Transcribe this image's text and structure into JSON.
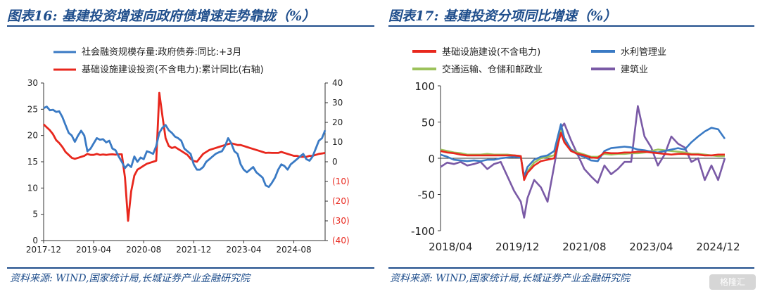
{
  "left": {
    "title": "图表16:  基建投资增速向政府债增速走势靠拢（%）",
    "source": "资料来源:  WIND,国家统计局,长城证券产业金融研究院"
  },
  "right": {
    "title": "图表17:  基建投资分项同比增速（%）",
    "source": "资料来源:  WIND,国家统计局,长城证券产业金融研究院"
  },
  "watermark": "格隆汇",
  "colors": {
    "blue": "#3a7ac4",
    "red": "#e8271d",
    "green": "#9cc25b",
    "purple": "#7a5aa6",
    "brand": "#1f4e8c"
  },
  "chart_data": [
    {
      "type": "line",
      "title": "",
      "xlabel": "",
      "ylabel": "",
      "x_start": "2017-12",
      "x_end": "2025-06",
      "x_ticks": [
        "2017-12",
        "2019-04",
        "2020-08",
        "2021-12",
        "2023-04",
        "2024-08"
      ],
      "ylim": [
        0,
        30
      ],
      "yticks": [
        "0",
        "5",
        "10",
        "15",
        "20",
        "25",
        "30"
      ],
      "y2lim": [
        -40,
        40
      ],
      "y2ticks": [
        "(40)",
        "(30)",
        "(20)",
        "(10)",
        "0",
        "10",
        "20",
        "30",
        "40"
      ],
      "grid": false,
      "legend_position": "top",
      "series": [
        {
          "name": "社会融资规模存量:政府债券:同比:+3月",
          "axis": "left",
          "color": "#3a7ac4",
          "x": [
            "2017-12",
            "2018-01",
            "2018-02",
            "2018-03",
            "2018-04",
            "2018-05",
            "2018-06",
            "2018-07",
            "2018-08",
            "2018-09",
            "2018-10",
            "2018-11",
            "2018-12",
            "2019-01",
            "2019-02",
            "2019-03",
            "2019-04",
            "2019-05",
            "2019-06",
            "2019-07",
            "2019-08",
            "2019-09",
            "2019-10",
            "2019-11",
            "2019-12",
            "2020-01",
            "2020-02",
            "2020-03",
            "2020-04",
            "2020-05",
            "2020-06",
            "2020-07",
            "2020-08",
            "2020-09",
            "2020-10",
            "2020-11",
            "2020-12",
            "2021-01",
            "2021-02",
            "2021-03",
            "2021-04",
            "2021-05",
            "2021-06",
            "2021-07",
            "2021-08",
            "2021-09",
            "2021-10",
            "2021-11",
            "2021-12",
            "2022-01",
            "2022-02",
            "2022-03",
            "2022-04",
            "2022-05",
            "2022-06",
            "2022-07",
            "2022-08",
            "2022-09",
            "2022-10",
            "2022-11",
            "2022-12",
            "2023-01",
            "2023-02",
            "2023-03",
            "2023-04",
            "2023-05",
            "2023-06",
            "2023-07",
            "2023-08",
            "2023-09",
            "2023-10",
            "2023-11",
            "2023-12",
            "2024-01",
            "2024-02",
            "2024-03",
            "2024-04",
            "2024-05",
            "2024-06",
            "2024-07",
            "2024-08",
            "2024-09",
            "2024-10",
            "2024-11",
            "2024-12",
            "2025-01",
            "2025-02",
            "2025-03",
            "2025-04",
            "2025-05",
            "2025-06"
          ],
          "values": [
            25.2,
            25.5,
            24.8,
            24.9,
            24.5,
            24.6,
            23.5,
            22.0,
            20.5,
            20.0,
            18.8,
            20.0,
            20.9,
            20.0,
            17.0,
            17.5,
            18.5,
            19.5,
            19.2,
            19.3,
            18.7,
            19.0,
            17.5,
            17.2,
            16.0,
            15.0,
            13.8,
            14.5,
            14.0,
            16.0,
            15.0,
            15.8,
            15.5,
            17.0,
            16.8,
            16.5,
            18.0,
            20.5,
            21.5,
            22.0,
            21.0,
            20.5,
            19.8,
            19.5,
            19.0,
            17.5,
            17.0,
            16.5,
            14.5,
            13.5,
            13.5,
            14.0,
            15.0,
            15.5,
            16.0,
            16.5,
            16.8,
            17.0,
            18.0,
            19.5,
            18.5,
            17.0,
            16.5,
            14.5,
            13.5,
            13.0,
            13.5,
            14.0,
            13.0,
            12.5,
            12.0,
            10.5,
            10.2,
            11.0,
            12.0,
            13.5,
            14.5,
            14.2,
            13.5,
            14.5,
            15.0,
            15.5,
            16.0,
            16.5,
            15.5,
            15.2,
            16.0,
            17.5,
            19.0,
            19.5,
            21.0
          ]
        },
        {
          "name": "基础设施建设投资(不含电力):累计同比(右轴)",
          "axis": "right",
          "color": "#e8271d",
          "x": [
            "2017-12",
            "2018-01",
            "2018-02",
            "2018-03",
            "2018-04",
            "2018-05",
            "2018-06",
            "2018-07",
            "2018-08",
            "2018-09",
            "2018-10",
            "2018-11",
            "2018-12",
            "2019-01",
            "2019-02",
            "2019-03",
            "2019-04",
            "2019-05",
            "2019-06",
            "2019-07",
            "2019-08",
            "2019-09",
            "2019-10",
            "2019-11",
            "2019-12",
            "2020-01",
            "2020-02",
            "2020-03",
            "2020-04",
            "2020-05",
            "2020-06",
            "2020-07",
            "2020-08",
            "2020-09",
            "2020-10",
            "2020-11",
            "2020-12",
            "2021-01",
            "2021-02",
            "2021-03",
            "2021-04",
            "2021-05",
            "2021-06",
            "2021-07",
            "2021-08",
            "2021-09",
            "2021-10",
            "2021-11",
            "2021-12",
            "2022-01",
            "2022-02",
            "2022-03",
            "2022-04",
            "2022-05",
            "2022-06",
            "2022-07",
            "2022-08",
            "2022-09",
            "2022-10",
            "2022-11",
            "2022-12",
            "2023-01",
            "2023-02",
            "2023-03",
            "2023-04",
            "2023-05",
            "2023-06",
            "2023-07",
            "2023-08",
            "2023-09",
            "2023-10",
            "2023-11",
            "2023-12",
            "2024-01",
            "2024-02",
            "2024-03",
            "2024-04",
            "2024-05",
            "2024-06",
            "2024-07",
            "2024-08",
            "2024-09",
            "2024-10",
            "2024-11",
            "2024-12",
            "2025-01",
            "2025-02",
            "2025-03",
            "2025-04",
            "2025-05",
            "2025-06"
          ],
          "values": [
            19,
            17.5,
            16,
            14,
            11,
            9.5,
            7.5,
            5,
            3.5,
            2,
            1.5,
            2,
            2.5,
            3,
            4,
            3.5,
            3.5,
            4,
            3.5,
            3.7,
            3.5,
            3.7,
            3.8,
            3.6,
            3.8,
            3.8,
            -8,
            -30,
            -15,
            -7,
            -4,
            -3,
            -2,
            -1,
            -0.5,
            0,
            0.5,
            35,
            23,
            12,
            8,
            7,
            7.5,
            6.5,
            5.5,
            4.5,
            3.5,
            1.5,
            0.4,
            0,
            2,
            4,
            5,
            6,
            6.5,
            7,
            7.5,
            8,
            8.5,
            9,
            9.4,
            9,
            8.5,
            8.5,
            8,
            7.5,
            7,
            6.5,
            6,
            5.5,
            5,
            4.5,
            4.6,
            4.5,
            4.5,
            4.5,
            5,
            4.5,
            4,
            3.5,
            3,
            3,
            2.5,
            2.5,
            2.5,
            3,
            3,
            3.5,
            4,
            4.2,
            4.5
          ]
        }
      ]
    },
    {
      "type": "line",
      "title": "",
      "xlabel": "",
      "ylabel": "",
      "x_start": "2018-01",
      "x_end": "2025-02",
      "x_ticks": [
        "2018/04",
        "2019/12",
        "2021/08",
        "2023/04",
        "2024/12"
      ],
      "ylim": [
        -100,
        100
      ],
      "yticks": [
        "-100",
        "-50",
        "0",
        "50",
        "100"
      ],
      "grid": false,
      "legend_position": "top",
      "series": [
        {
          "name": "基础设施建设(不含电力)",
          "color": "#e8271d",
          "x": [
            "2018-01",
            "2018-03",
            "2018-05",
            "2018-07",
            "2018-09",
            "2018-11",
            "2019-01",
            "2019-03",
            "2019-05",
            "2019-07",
            "2019-09",
            "2019-11",
            "2020-01",
            "2020-02",
            "2020-03",
            "2020-05",
            "2020-07",
            "2020-09",
            "2020-11",
            "2021-01",
            "2021-02",
            "2021-04",
            "2021-06",
            "2021-08",
            "2021-10",
            "2021-12",
            "2022-02",
            "2022-04",
            "2022-06",
            "2022-08",
            "2022-10",
            "2022-12",
            "2023-02",
            "2023-04",
            "2023-06",
            "2023-08",
            "2023-10",
            "2023-12",
            "2024-02",
            "2024-04",
            "2024-06",
            "2024-08",
            "2024-10",
            "2024-12",
            "2025-02"
          ],
          "values": [
            10,
            8,
            7,
            5,
            4,
            4,
            4,
            4,
            4,
            4,
            4,
            4,
            3,
            -30,
            -20,
            -10,
            -4,
            -2,
            0,
            35,
            22,
            10,
            6,
            4,
            1,
            0.4,
            8,
            7,
            7,
            8,
            8,
            9,
            9,
            8,
            7,
            6,
            5,
            6,
            6,
            5,
            5,
            4,
            4,
            5,
            5
          ]
        },
        {
          "name": "水利管理业",
          "color": "#3a7ac4",
          "x": [
            "2018-01",
            "2018-03",
            "2018-05",
            "2018-07",
            "2018-09",
            "2018-11",
            "2019-01",
            "2019-03",
            "2019-05",
            "2019-07",
            "2019-09",
            "2019-11",
            "2020-01",
            "2020-02",
            "2020-03",
            "2020-05",
            "2020-07",
            "2020-09",
            "2020-11",
            "2021-01",
            "2021-02",
            "2021-04",
            "2021-06",
            "2021-08",
            "2021-10",
            "2021-12",
            "2022-02",
            "2022-04",
            "2022-06",
            "2022-08",
            "2022-10",
            "2022-12",
            "2023-02",
            "2023-04",
            "2023-06",
            "2023-08",
            "2023-10",
            "2023-12",
            "2024-02",
            "2024-04",
            "2024-06",
            "2024-08",
            "2024-10",
            "2024-12",
            "2025-02"
          ],
          "values": [
            5,
            2,
            -2,
            -3,
            -4,
            -3,
            -4,
            -2,
            -2,
            0,
            1,
            2,
            1,
            -25,
            -12,
            -2,
            2,
            4,
            10,
            47,
            28,
            12,
            5,
            2,
            -3,
            -4,
            10,
            14,
            15,
            16,
            15,
            12,
            11,
            9,
            8,
            10,
            12,
            14,
            12,
            22,
            30,
            37,
            42,
            40,
            27
          ]
        },
        {
          "name": "交通运输、仓储和邮政业",
          "color": "#9cc25b",
          "x": [
            "2018-01",
            "2018-03",
            "2018-05",
            "2018-07",
            "2018-09",
            "2018-11",
            "2019-01",
            "2019-03",
            "2019-05",
            "2019-07",
            "2019-09",
            "2019-11",
            "2020-01",
            "2020-02",
            "2020-03",
            "2020-05",
            "2020-07",
            "2020-09",
            "2020-11",
            "2021-01",
            "2021-02",
            "2021-04",
            "2021-06",
            "2021-08",
            "2021-10",
            "2021-12",
            "2022-02",
            "2022-04",
            "2022-06",
            "2022-08",
            "2022-10",
            "2022-12",
            "2023-02",
            "2023-04",
            "2023-06",
            "2023-08",
            "2023-10",
            "2023-12",
            "2024-02",
            "2024-04",
            "2024-06",
            "2024-08",
            "2024-10",
            "2024-12",
            "2025-02"
          ],
          "values": [
            12,
            10,
            8,
            7,
            5,
            5,
            5,
            6,
            5,
            5,
            5,
            4,
            3,
            -28,
            -18,
            -6,
            0,
            2,
            4,
            38,
            25,
            12,
            8,
            5,
            2,
            2,
            6,
            5,
            6,
            6,
            7,
            7,
            8,
            10,
            12,
            11,
            10,
            9,
            8,
            6,
            6,
            5,
            4,
            3,
            3
          ]
        },
        {
          "name": "建筑业",
          "color": "#7a5aa6",
          "x": [
            "2018-01",
            "2018-03",
            "2018-05",
            "2018-07",
            "2018-09",
            "2018-11",
            "2019-01",
            "2019-03",
            "2019-05",
            "2019-07",
            "2019-09",
            "2019-11",
            "2020-01",
            "2020-02",
            "2020-03",
            "2020-05",
            "2020-07",
            "2020-09",
            "2020-11",
            "2021-01",
            "2021-02",
            "2021-04",
            "2021-06",
            "2021-08",
            "2021-10",
            "2021-12",
            "2022-02",
            "2022-04",
            "2022-06",
            "2022-08",
            "2022-10",
            "2022-12",
            "2023-02",
            "2023-04",
            "2023-06",
            "2023-08",
            "2023-10",
            "2023-12",
            "2024-02",
            "2024-04",
            "2024-06",
            "2024-08",
            "2024-10",
            "2024-12",
            "2025-02"
          ],
          "values": [
            -12,
            -6,
            -8,
            -5,
            -10,
            -8,
            -5,
            -15,
            -8,
            -5,
            -25,
            -45,
            -60,
            -82,
            -55,
            -30,
            -40,
            -60,
            -10,
            42,
            48,
            25,
            5,
            -15,
            -25,
            -34,
            -10,
            -22,
            -15,
            -5,
            -5,
            72,
            30,
            15,
            -10,
            5,
            30,
            20,
            15,
            -5,
            0,
            -30,
            -10,
            -30,
            0
          ]
        }
      ]
    }
  ]
}
